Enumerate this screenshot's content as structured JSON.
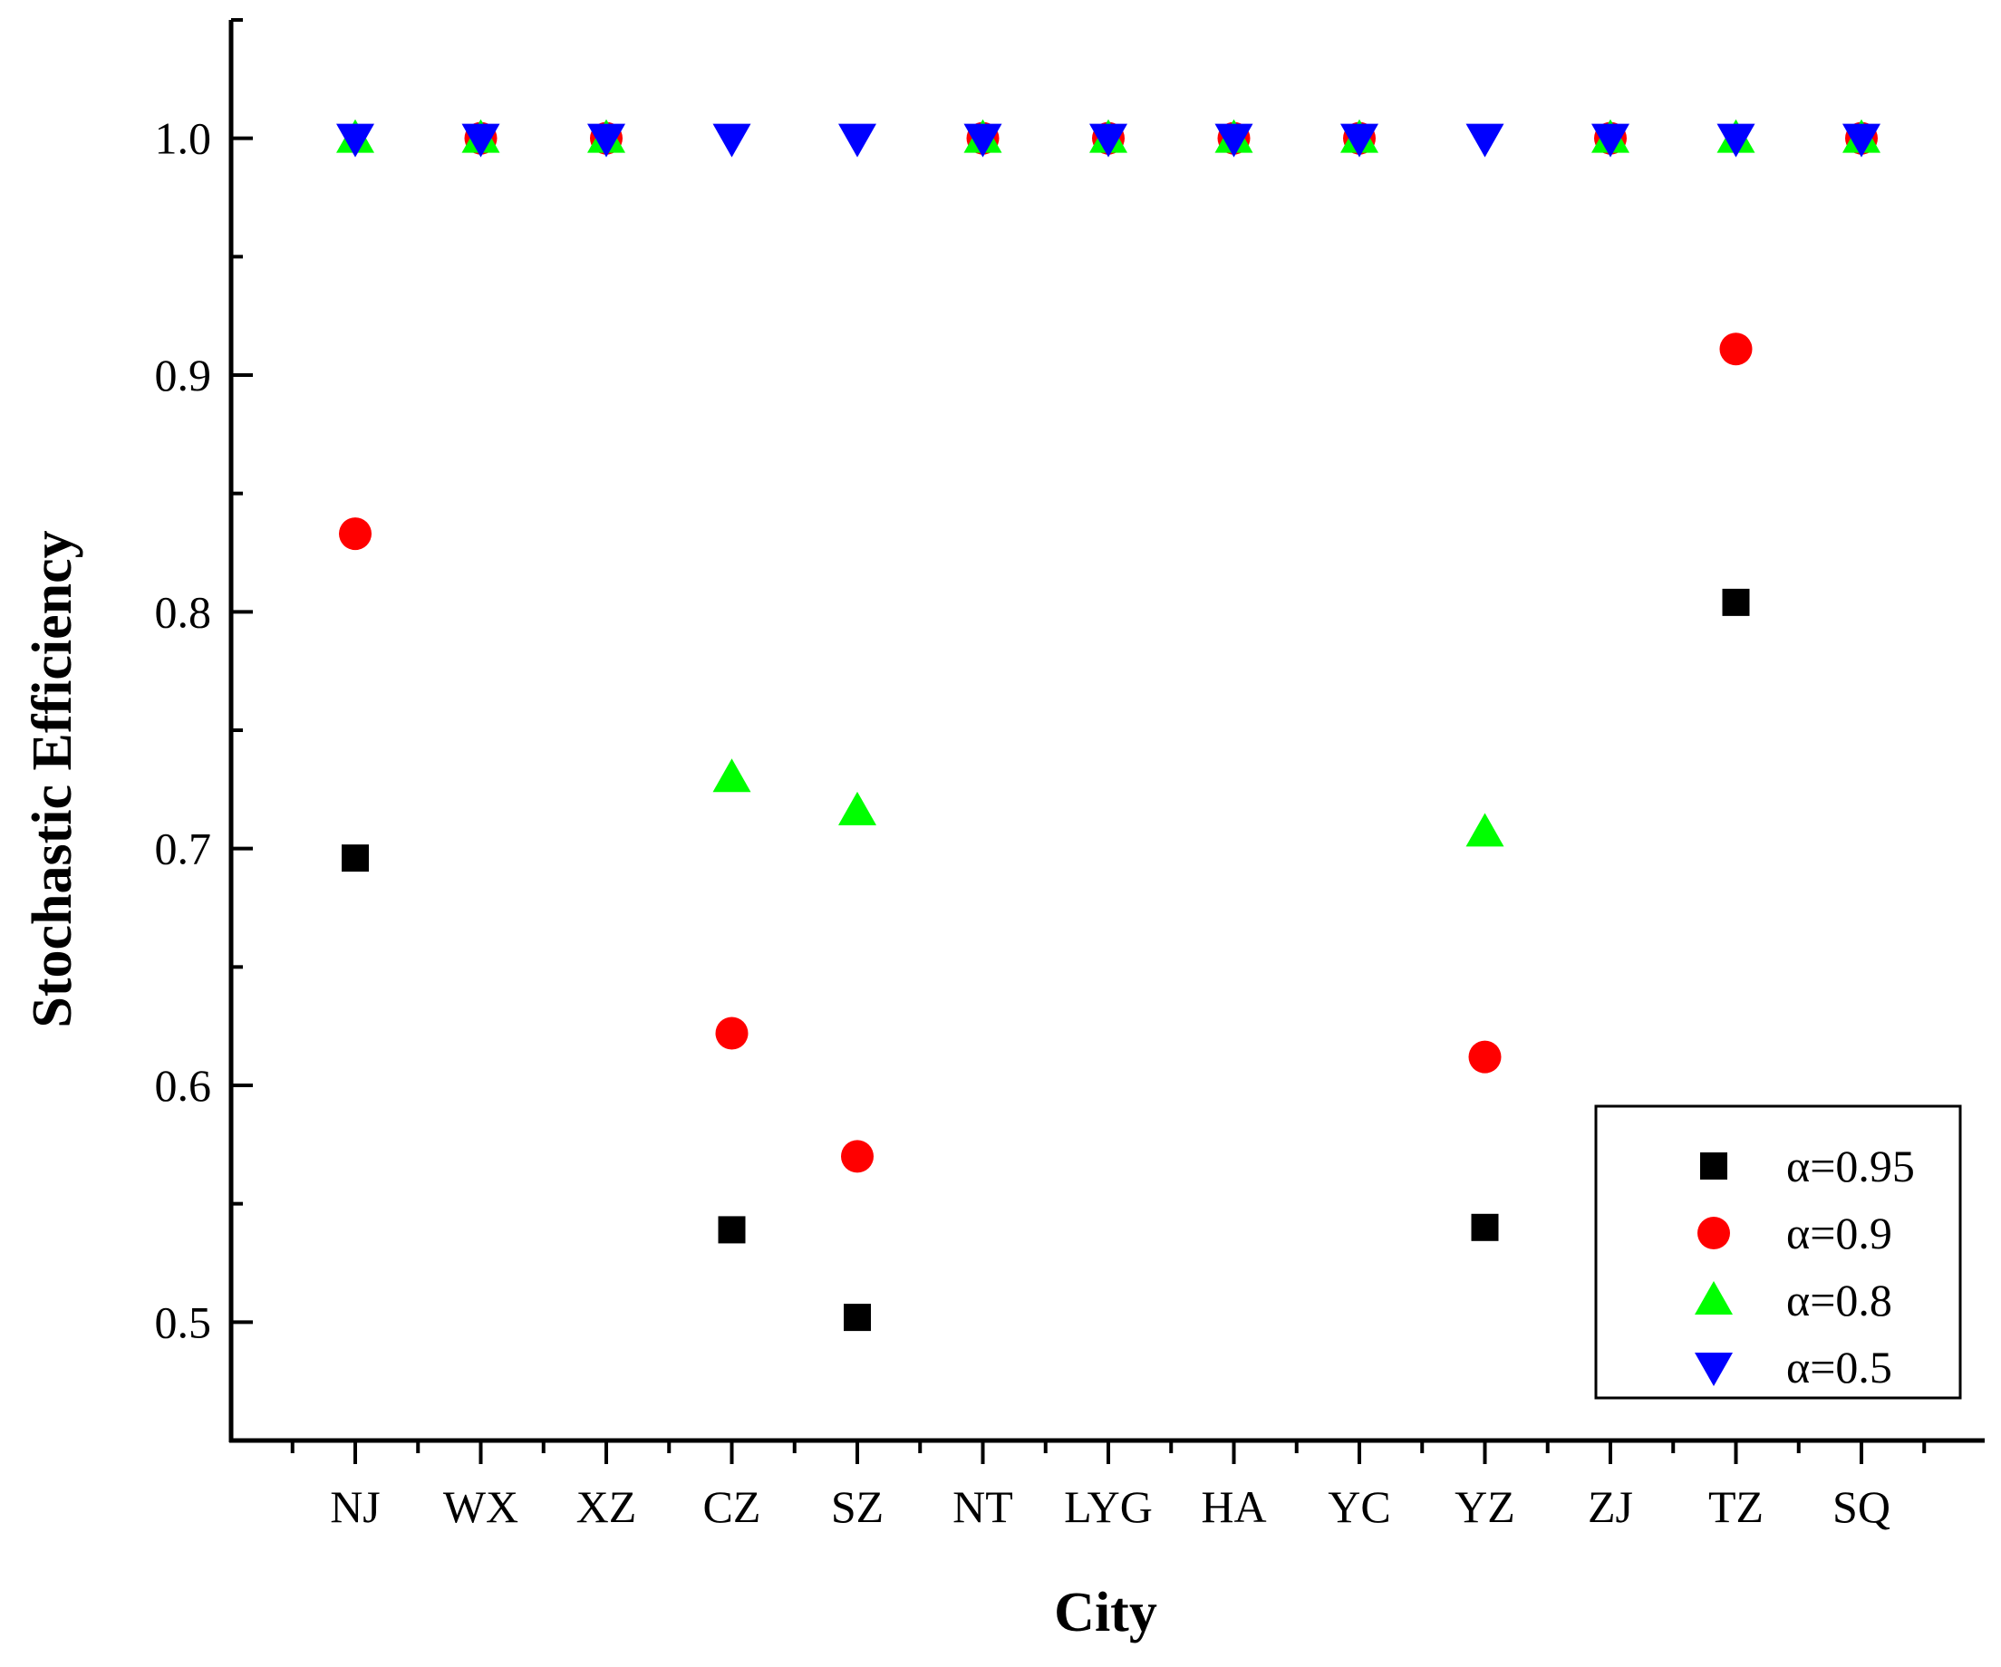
{
  "chart_data": {
    "type": "scatter",
    "xlabel": "City",
    "ylabel": "Stochastic Efficiency",
    "categories": [
      "NJ",
      "WX",
      "XZ",
      "CZ",
      "SZ",
      "NT",
      "LYG",
      "HA",
      "YC",
      "YZ",
      "ZJ",
      "TZ",
      "SQ"
    ],
    "ylim": [
      0.45,
      1.05
    ],
    "yticks": [
      0.5,
      0.6,
      0.7,
      0.8,
      0.9,
      1.0
    ],
    "ytick_labels": [
      "0.5",
      "0.6",
      "0.7",
      "0.8",
      "0.9",
      "1.0"
    ],
    "grid": false,
    "legend_position": "bottom-right",
    "series": [
      {
        "name": "α=0.95",
        "marker": "square",
        "color": "#000000",
        "values": [
          0.696,
          1.0,
          1.0,
          0.539,
          0.502,
          1.0,
          1.0,
          1.0,
          1.0,
          0.54,
          1.0,
          0.804,
          1.0
        ]
      },
      {
        "name": "α=0.9",
        "marker": "circle",
        "color": "#ff0000",
        "values": [
          0.833,
          1.0,
          1.0,
          0.622,
          0.57,
          1.0,
          1.0,
          1.0,
          1.0,
          0.612,
          1.0,
          0.911,
          1.0
        ]
      },
      {
        "name": "α=0.8",
        "marker": "triangle-up",
        "color": "#00ff00",
        "values": [
          1.0,
          1.0,
          1.0,
          0.73,
          0.716,
          1.0,
          1.0,
          1.0,
          1.0,
          0.707,
          1.0,
          1.0,
          1.0
        ]
      },
      {
        "name": "α=0.5",
        "marker": "triangle-down",
        "color": "#0000ff",
        "values": [
          1.0,
          1.0,
          1.0,
          1.0,
          1.0,
          1.0,
          1.0,
          1.0,
          1.0,
          1.0,
          1.0,
          1.0,
          1.0
        ]
      }
    ]
  }
}
